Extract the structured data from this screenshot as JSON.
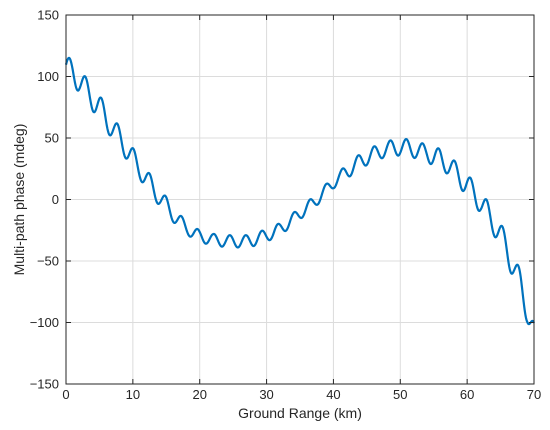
{
  "chart_data": {
    "type": "line",
    "title": "",
    "xlabel": "Ground Range (km)",
    "ylabel": "Multi-path phase (mdeg)",
    "xlim": [
      0,
      70
    ],
    "ylim": [
      -150,
      150
    ],
    "xticks": [
      0,
      10,
      20,
      30,
      40,
      50,
      60,
      70
    ],
    "yticks": [
      -150,
      -100,
      -50,
      0,
      50,
      100,
      150
    ],
    "xtick_labels": [
      "0",
      "10",
      "20",
      "30",
      "40",
      "50",
      "60",
      "70"
    ],
    "ytick_labels": [
      "−150",
      "−100",
      "−50",
      "0",
      "50",
      "100",
      "150"
    ],
    "grid": true,
    "line_color": "#0072BD",
    "series": [
      {
        "x": [
          0,
          1,
          2,
          3,
          4,
          5,
          6,
          7,
          8,
          9,
          10,
          11,
          12,
          13,
          14,
          15,
          16,
          17,
          18,
          19,
          20,
          21,
          22,
          23,
          24,
          25,
          26,
          27,
          28,
          29,
          30,
          31,
          32,
          33,
          34,
          35,
          36,
          37,
          38,
          39,
          40,
          41,
          42,
          43,
          44,
          45,
          46,
          47,
          48,
          49,
          50,
          51,
          52,
          53,
          54,
          55,
          56,
          57,
          58,
          59,
          60,
          61,
          62,
          63,
          64,
          65,
          66,
          67,
          68,
          69,
          70
        ],
        "y": [
          107,
          103,
          97,
          89,
          82,
          75,
          66,
          58,
          50,
          42,
          33,
          25,
          17,
          9,
          2,
          -5,
          -12,
          -18,
          -23,
          -27,
          -30,
          -31,
          -33,
          -33,
          -34,
          -34,
          -34,
          -34,
          -33,
          -31,
          -29,
          -27,
          -24,
          -20,
          -16,
          -11,
          -7,
          -3,
          3,
          8,
          14,
          18,
          23,
          27,
          31,
          34,
          37,
          39,
          41,
          42,
          43,
          42,
          41,
          39,
          38,
          35,
          33,
          29,
          24,
          18,
          12,
          5,
          -2,
          -11,
          -19,
          -29,
          -41,
          -55,
          -71,
          -88,
          -112
        ],
        "ripple_amplitude": [
          10,
          10,
          10,
          10,
          10,
          10,
          10,
          9,
          9,
          9,
          9,
          8,
          8,
          8,
          7,
          7,
          6,
          6,
          5,
          5,
          5,
          5,
          5,
          5,
          5,
          5,
          5,
          5,
          5,
          5,
          5,
          5,
          5,
          5,
          5,
          5,
          5,
          5,
          5,
          5,
          5,
          5,
          6,
          6,
          6,
          6,
          6,
          6,
          6,
          7,
          7,
          7,
          7,
          7,
          7,
          8,
          8,
          8,
          8,
          9,
          9,
          9,
          9,
          10,
          10,
          10,
          11,
          11,
          12,
          12,
          12
        ],
        "ripple_period_km": 2.4
      }
    ]
  }
}
